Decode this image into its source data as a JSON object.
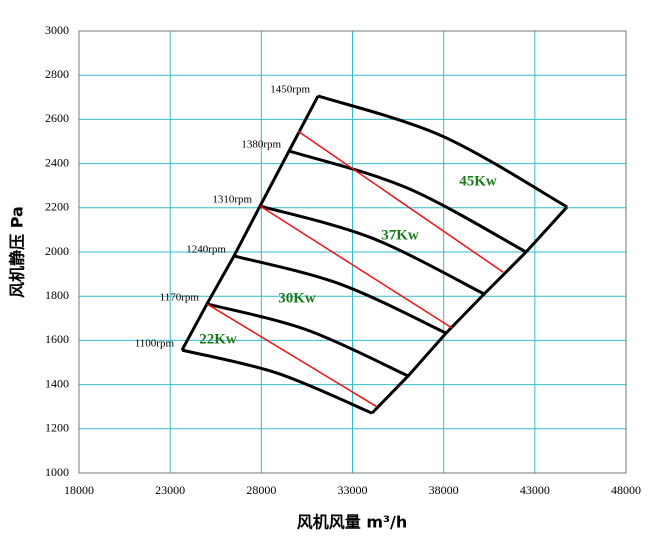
{
  "chart_data": {
    "type": "line",
    "x_label": "风机风量  m³/h",
    "y_label": "风机静压    Pa",
    "xlim": [
      18000,
      48000
    ],
    "ylim": [
      1000,
      3000
    ],
    "xticks": [
      18000,
      23000,
      28000,
      33000,
      38000,
      43000,
      48000
    ],
    "yticks": [
      1000,
      1200,
      1400,
      1600,
      1800,
      2000,
      2200,
      2400,
      2600,
      2800,
      3000
    ],
    "grid": true,
    "grid_color": "#33bbcc",
    "series": [
      {
        "name": "1100rpm",
        "color": "#000000",
        "x": [
          23650,
          28860,
          34070
        ],
        "y": [
          1556,
          1452,
          1271
        ]
      },
      {
        "name": "1170rpm",
        "color": "#000000",
        "x": [
          25020,
          30510,
          36050
        ],
        "y": [
          1765,
          1647,
          1439
        ]
      },
      {
        "name": "1240rpm",
        "color": "#000000",
        "x": [
          26500,
          32320,
          38130
        ],
        "y": [
          1982,
          1855,
          1633
        ]
      },
      {
        "name": "1310rpm",
        "color": "#000000",
        "x": [
          27930,
          34070,
          40220
        ],
        "y": [
          2208,
          2063,
          1810
        ]
      },
      {
        "name": "1380rpm",
        "color": "#000000",
        "x": [
          29520,
          35990,
          42520
        ],
        "y": [
          2457,
          2290,
          2000
        ]
      },
      {
        "name": "1450rpm",
        "color": "#000000",
        "x": [
          31110,
          37910,
          44770
        ],
        "y": [
          2706,
          2525,
          2204
        ]
      }
    ],
    "power_lines": [
      {
        "color": "#ee1111",
        "x": [
          25020,
          34350
        ],
        "y": [
          1765,
          1299
        ]
      },
      {
        "color": "#ee1111",
        "x": [
          27930,
          38460
        ],
        "y": [
          2208,
          1656
        ]
      },
      {
        "color": "#ee1111",
        "x": [
          30010,
          41260
        ],
        "y": [
          2547,
          1909
        ]
      }
    ],
    "annotations": [
      "22Kw",
      "30Kw",
      "37Kw",
      "45Kw"
    ]
  }
}
